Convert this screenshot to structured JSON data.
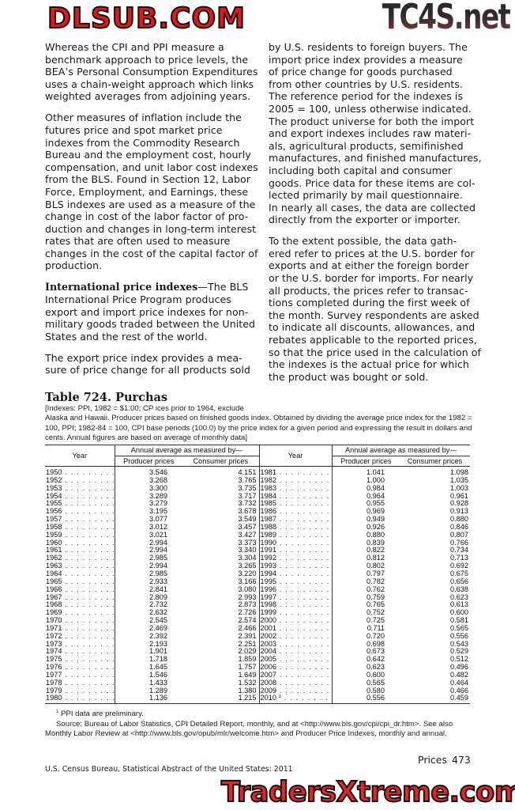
{
  "left_column": {
    "paragraphs": [
      {
        "lines": [
          "Whereas the CPI and PPI measure a",
          "benchmark approach to price levels, the",
          "BEA’s Personal Consumption Expenditures",
          "uses a chain-weight approach which links",
          "weighted averages from adjoining years."
        ]
      },
      {
        "lines": [
          "Other measures of inflation include the",
          "futures price and spot market price",
          "indexes from the Commodity Research",
          "Bureau and the employment cost, hourly",
          "compensation, and unit labor cost indexes",
          "from the BLS.  Found in Section 12, Labor",
          "Force, Employment, and Earnings, these",
          "BLS indexes are used as a measure of the",
          "change in cost of the labor factor of pro-",
          "duction and changes in long-term interest",
          "rates that are often used to measure",
          "changes in the cost of the capital factor of",
          "production."
        ]
      },
      {
        "heading": "International price indexes",
        "lines": [
          "—The BLS",
          "International Price Program produces",
          "export and import price indexes for non-",
          "military goods traded between the United",
          "States and the rest of the world."
        ]
      },
      {
        "lines": [
          "The export price index provides a mea-",
          "sure of price change for all products sold"
        ]
      }
    ]
  },
  "right_column": {
    "paragraphs": [
      {
        "lines": [
          "by U.S. residents to foreign buyers. The",
          "import price index provides a measure",
          "of price change for goods purchased",
          "from other countries by U.S. residents.",
          "The reference period for the indexes is",
          "2005 = 100, unless otherwise indicated.",
          "The product universe for both the import",
          "and export indexes includes raw materi-",
          "als, agricultural products, semifinished",
          "manufactures, and finished manufactures,",
          "including both capital and consumer",
          "goods. Price data for these items are col-",
          "lected primarily by mail questionnaire.",
          "In nearly all cases, the data are collected",
          "directly from the exporter or importer."
        ]
      },
      {
        "lines": [
          "To the extent possible, the data gath-",
          "ered refer to prices at the U.S. border for",
          "exports and at either the foreign border",
          "or the U.S. border for imports. For nearly",
          "all products, the prices refer to transac-",
          "tions completed during the first week of",
          "the month. Survey respondents are asked",
          "to indicate all discounts, allowances, and",
          "rebates applicable to the reported prices,",
          "so that the price used in the calculation of",
          "the indexes is the actual price for which",
          "the product was bought or sold."
        ]
      }
    ]
  },
  "table": {
    "title": "Table 724. Purchas",
    "note_lines": [
      "[Indexes: PPI, 1982 = $1.00; CP                                                                         ices prior to 1964, exclude",
      "Alaska and Hawaii. Producer prices based on finished goods index. Obtained by dividing the average price index for the 1982 =",
      "100, PPI; 1982-84 = 100, CPI base periods (100.0) by the price index for a given period and expressing the result in dollars and",
      "cents. Annual figures are based on average of monthly data]"
    ],
    "headers": {
      "year": "Year",
      "group": "Annual average as measured by—",
      "producer": "Producer prices",
      "consumer": "Consumer prices"
    },
    "left_rows": [
      [
        "1950",
        "3.546",
        "4.151"
      ],
      [
        "1952",
        "3.268",
        "3.765"
      ],
      [
        "1953",
        "3.300",
        "3.735"
      ],
      [
        "1954",
        "3.289",
        "3.717"
      ],
      [
        "1955",
        "3.279",
        "3.732"
      ],
      [
        "1956",
        "3.195",
        "3.678"
      ],
      [
        "1957",
        "3.077",
        "3.549"
      ],
      [
        "1958",
        "3.012",
        "3.457"
      ],
      [
        "1959",
        "3.021",
        "3.427"
      ],
      [
        "1960",
        "2.994",
        "3.373"
      ],
      [
        "1961",
        "2.994",
        "3.340"
      ],
      [
        "1962",
        "2.985",
        "3.304"
      ],
      [
        "1963",
        "2.994",
        "3.265"
      ],
      [
        "1964",
        "2.985",
        "3.220"
      ],
      [
        "1965",
        "2.933",
        "3.166"
      ],
      [
        "1966",
        "2.841",
        "3.080"
      ],
      [
        "1967",
        "2.809",
        "2.993"
      ],
      [
        "1968",
        "2.732",
        "2.873"
      ],
      [
        "1969",
        "2.632",
        "2.726"
      ],
      [
        "1970",
        "2.545",
        "2.574"
      ],
      [
        "1971",
        "2.469",
        "2.466"
      ],
      [
        "1972",
        "2.392",
        "2.391"
      ],
      [
        "1973",
        "2.193",
        "2.251"
      ],
      [
        "1974",
        "1.901",
        "2.029"
      ],
      [
        "1975",
        "1.718",
        "1.859"
      ],
      [
        "1976",
        "1.645",
        "1.757"
      ],
      [
        "1977",
        "1.546",
        "1.649"
      ],
      [
        "1978",
        "1.433",
        "1.532"
      ],
      [
        "1979",
        "1.289",
        "1.380"
      ],
      [
        "1980",
        "1.136",
        "1.215"
      ]
    ],
    "right_rows": [
      [
        "1981",
        "1.041",
        "1.098"
      ],
      [
        "1982",
        "1.000",
        "1.035"
      ],
      [
        "1983",
        "0.984",
        "1.003"
      ],
      [
        "1984",
        "0.964",
        "0.961"
      ],
      [
        "1985",
        "0.955",
        "0.928"
      ],
      [
        "1986",
        "0.969",
        "0.913"
      ],
      [
        "1987",
        "0.949",
        "0.880"
      ],
      [
        "1988",
        "0.926",
        "0.846"
      ],
      [
        "1989",
        "0.880",
        "0.807"
      ],
      [
        "1990",
        "0.839",
        "0.766"
      ],
      [
        "1991",
        "0.822",
        "0.734"
      ],
      [
        "1992",
        "0.812",
        "0.713"
      ],
      [
        "1993",
        "0.802",
        "0.692"
      ],
      [
        "1994",
        "0.797",
        "0.675"
      ],
      [
        "1995",
        "0.782",
        "0.656"
      ],
      [
        "1996",
        "0.762",
        "0.638"
      ],
      [
        "1997",
        "0.759",
        "0.623"
      ],
      [
        "1998",
        "0.765",
        "0.613"
      ],
      [
        "1999",
        "0.752",
        "0.600"
      ],
      [
        "2000",
        "0.725",
        "0.581"
      ],
      [
        "2001",
        "0.711",
        "0.565"
      ],
      [
        "2002",
        "0.720",
        "0.556"
      ],
      [
        "2003",
        "0.698",
        "0.543"
      ],
      [
        "2004",
        "0.673",
        "0.529"
      ],
      [
        "2005",
        "0.642",
        "0.512"
      ],
      [
        "2006",
        "0.623",
        "0.496"
      ],
      [
        "2007",
        "0.600",
        "0.482"
      ],
      [
        "2008",
        "0.565",
        "0.464"
      ],
      [
        "2009",
        "0.580",
        "0.466"
      ],
      [
        "2010",
        "0.556",
        "0.459",
        "1"
      ]
    ],
    "footnote_marker": "1",
    "footnote": "PPI data are preliminary.",
    "source_lines": [
      "Source: Bureau of Labor Statistics, CPI Detailed Report, monthly, and at <http://www.bls.gov/cpi/cpi_dr.htm>. See also",
      "Monthly Labor Review at <http://www.bls.gov/opub/mlr/welcome.htm> and Producer Price Indexes, monthly and annual."
    ]
  },
  "footer": {
    "section": "Prices",
    "page_number": "473",
    "source": "U.S. Census Bureau, Statistical Abstract of the United States: 2011"
  },
  "watermarks": {
    "top_right": "TC4S.net",
    "middle": "DLSUB.COM",
    "bottom": "TradersXtreme.com"
  }
}
